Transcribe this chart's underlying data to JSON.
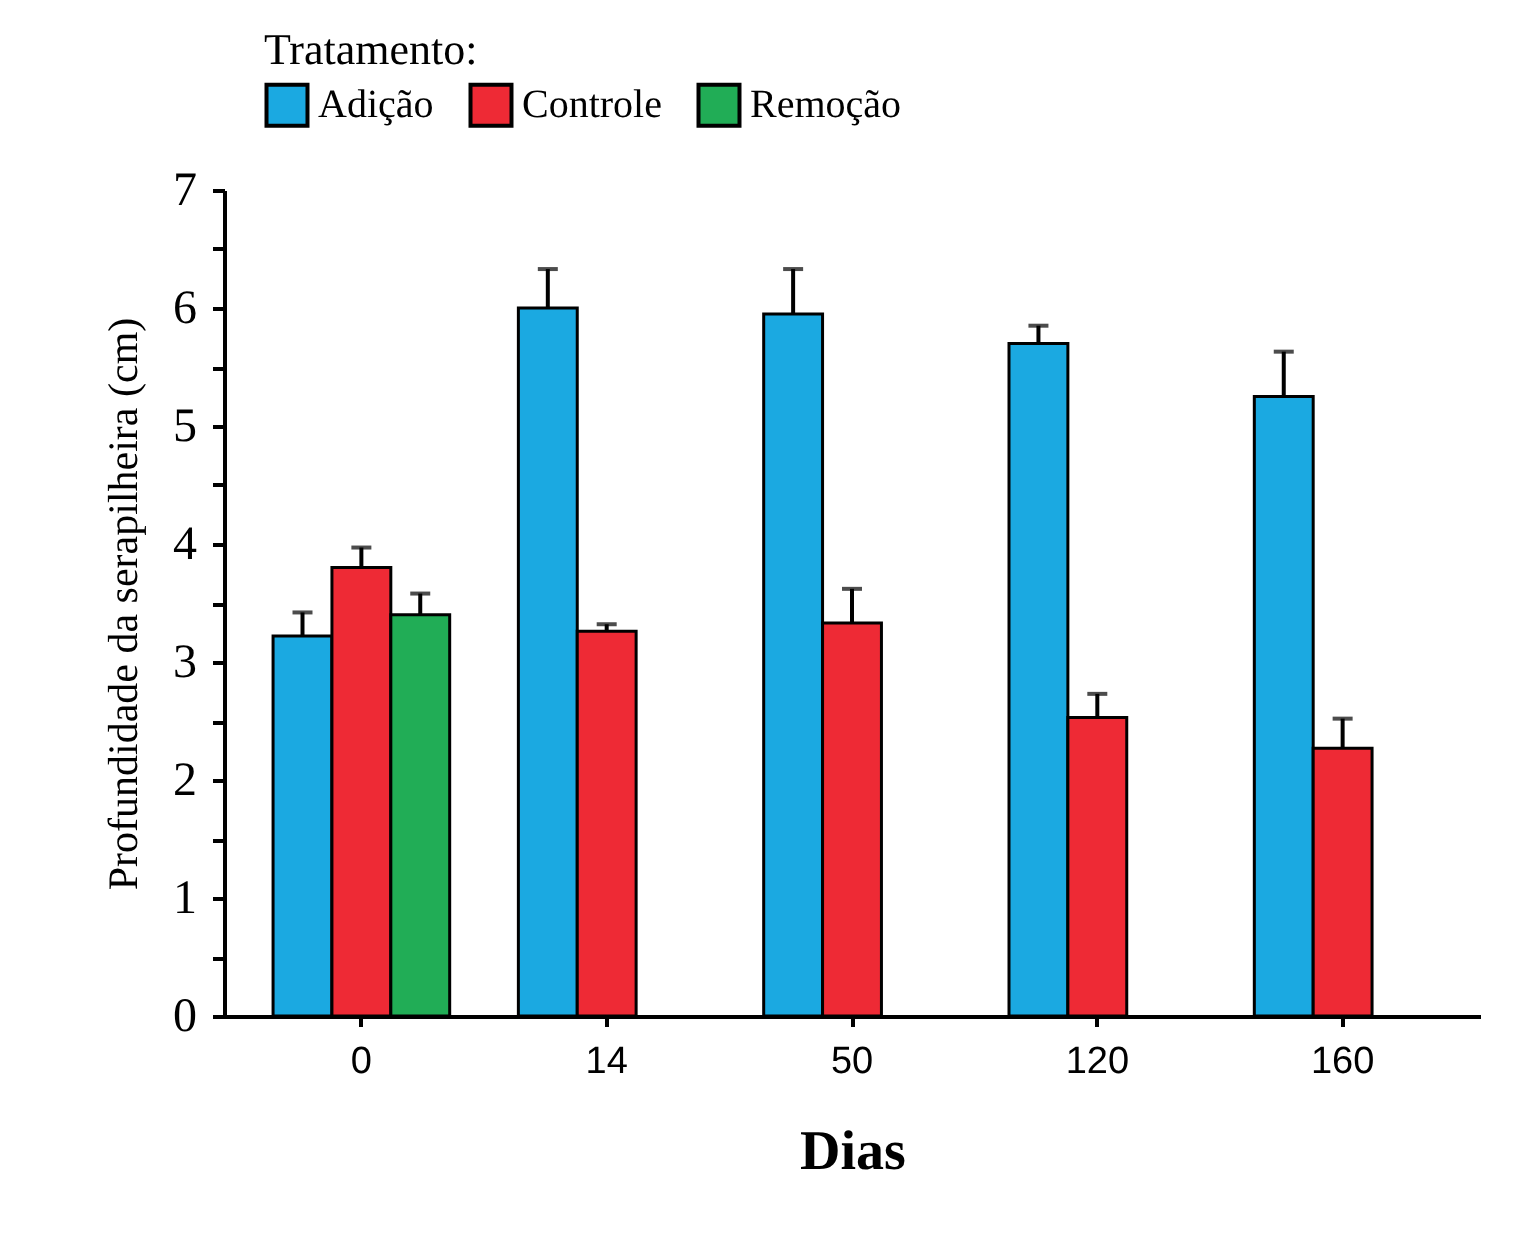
{
  "chart_data": {
    "type": "bar",
    "xlabel": "Dias",
    "ylabel": "Profundidade da serapilheira (cm)",
    "legend_title": "Tratamento:",
    "legend": "top left",
    "categories": [
      "0",
      "14",
      "50",
      "120",
      "160"
    ],
    "series": [
      {
        "name": "Adição",
        "color": "#1ba9e1",
        "values": [
          3.22,
          6.0,
          5.95,
          5.7,
          5.25
        ],
        "errors": [
          [
            3.22,
            3.42
          ],
          [
            6.0,
            6.33
          ],
          [
            5.95,
            6.33
          ],
          [
            5.7,
            5.85
          ],
          [
            5.25,
            5.63
          ]
        ]
      },
      {
        "name": "Controle",
        "color": "#ee2a35",
        "values": [
          3.8,
          3.26,
          3.33,
          2.53,
          2.27
        ],
        "errors": [
          [
            3.8,
            3.97
          ],
          [
            3.26,
            3.32
          ],
          [
            3.33,
            3.62
          ],
          [
            2.53,
            2.73
          ],
          [
            2.27,
            2.52
          ]
        ]
      },
      {
        "name": "Remoção",
        "color": "#21ad56",
        "values": [
          3.4,
          null,
          null,
          null,
          null
        ],
        "errors": [
          [
            3.4,
            3.58
          ],
          null,
          null,
          null,
          null
        ]
      }
    ],
    "ylim": [
      0,
      7
    ],
    "yticks": [
      0,
      {
        "value": 0.5,
        "label": null
      },
      1,
      {
        "value": 1.5,
        "label": null
      },
      2,
      {
        "value": 2.5,
        "label": null
      },
      3,
      {
        "value": 3.5,
        "label": null
      },
      4,
      {
        "value": 4.5,
        "label": null
      },
      5,
      {
        "value": 5.5,
        "label": null
      },
      6,
      {
        "value": 6.5,
        "label": null
      },
      7
    ],
    "grid": false
  }
}
